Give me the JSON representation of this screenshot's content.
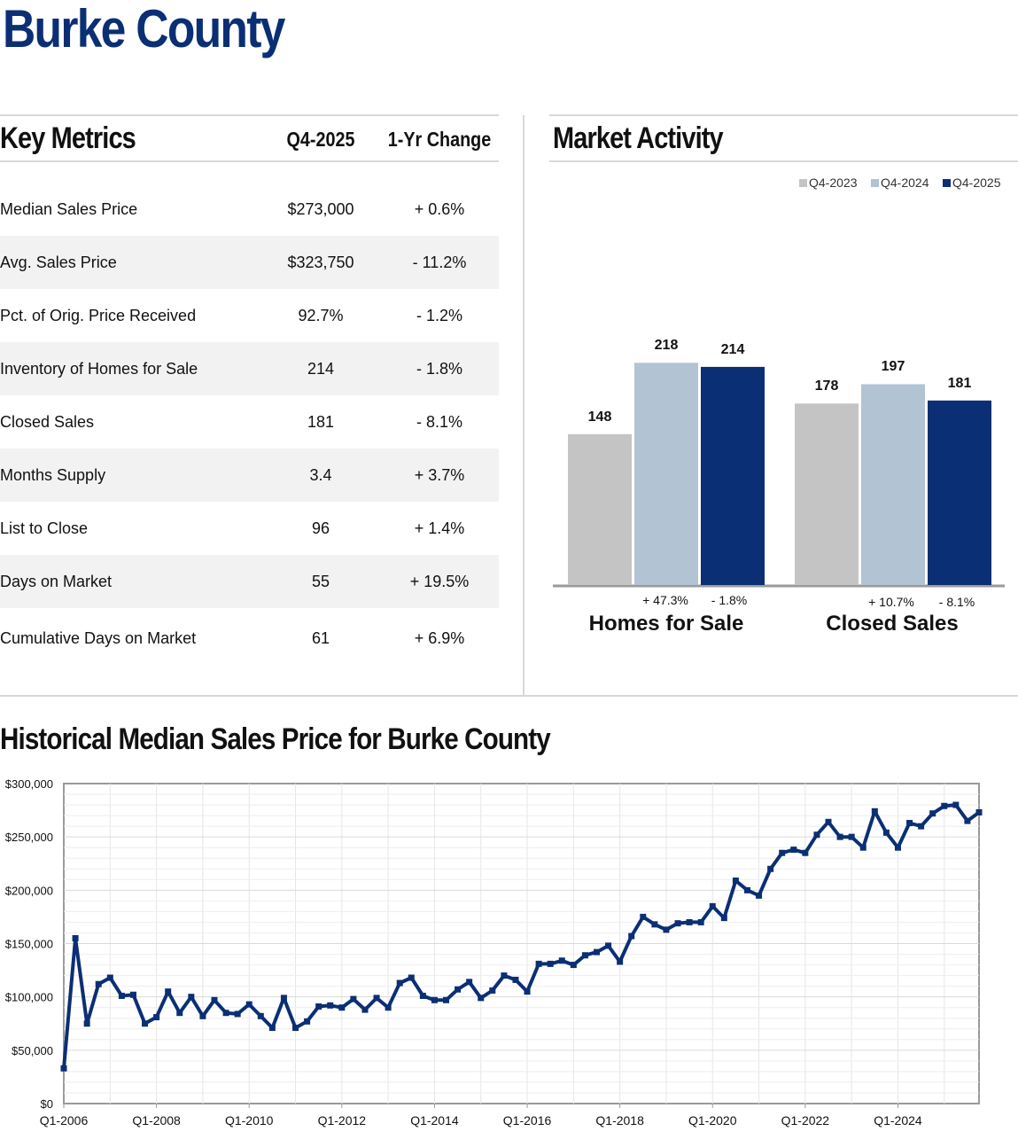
{
  "title": "Burke County",
  "key_metrics": {
    "heading": "Key Metrics",
    "col_period": "Q4-2025",
    "col_change": "1-Yr Change",
    "rows": [
      {
        "label": "Median Sales Price",
        "value": "$273,000",
        "change": "+ 0.6%"
      },
      {
        "label": "Avg. Sales Price",
        "value": "$323,750",
        "change": "- 11.2%"
      },
      {
        "label": "Pct. of Orig. Price Received",
        "value": "92.7%",
        "change": "- 1.2%"
      },
      {
        "label": "Inventory of Homes for Sale",
        "value": "214",
        "change": "- 1.8%"
      },
      {
        "label": "Closed Sales",
        "value": "181",
        "change": "- 8.1%"
      },
      {
        "label": "Months Supply",
        "value": "3.4",
        "change": "+ 3.7%"
      },
      {
        "label": "List to Close",
        "value": "96",
        "change": "+ 1.4%"
      },
      {
        "label": "Days on Market",
        "value": "55",
        "change": "+ 19.5%"
      },
      {
        "label": "Cumulative Days on Market",
        "value": "61",
        "change": "+ 6.9%"
      }
    ]
  },
  "market_activity": {
    "heading": "Market Activity",
    "legend": [
      {
        "label": "Q4-2023",
        "color": "#c4c4c4"
      },
      {
        "label": "Q4-2024",
        "color": "#b2c3d4"
      },
      {
        "label": "Q4-2025",
        "color": "#0b2f74"
      }
    ]
  },
  "historical": {
    "heading": "Historical Median Sales Price for Burke County"
  },
  "chart_data": [
    {
      "type": "bar",
      "title": "Market Activity",
      "categories": [
        "Homes for Sale",
        "Closed Sales"
      ],
      "series": [
        {
          "name": "Q4-2023",
          "values": [
            148,
            178
          ]
        },
        {
          "name": "Q4-2024",
          "values": [
            218,
            197
          ]
        },
        {
          "name": "Q4-2025",
          "values": [
            214,
            181
          ]
        }
      ],
      "changes": [
        {
          "category": "Homes for Sale",
          "yoy_2024": "+ 47.3%",
          "yoy_2025": "- 1.8%"
        },
        {
          "category": "Closed Sales",
          "yoy_2024": "+ 10.7%",
          "yoy_2025": "- 8.1%"
        }
      ],
      "ylim": [
        0,
        250
      ]
    },
    {
      "type": "line",
      "title": "Historical Median Sales Price for Burke County",
      "xlabel": "",
      "ylabel": "",
      "ylim": [
        0,
        300000
      ],
      "y_ticks": [
        "$0",
        "$50,000",
        "$100,000",
        "$150,000",
        "$200,000",
        "$250,000",
        "$300,000"
      ],
      "x_ticks": [
        "Q1-2006",
        "Q1-2008",
        "Q1-2010",
        "Q1-2012",
        "Q1-2014",
        "Q1-2016",
        "Q1-2018",
        "Q1-2020",
        "Q1-2022",
        "Q1-2024"
      ],
      "grid": true,
      "start_quarter": "Q1-2006",
      "series": [
        {
          "name": "Median Sales Price",
          "color": "#0b2f74",
          "values": [
            33000,
            155000,
            75000,
            112000,
            118000,
            101000,
            102000,
            75000,
            81000,
            105000,
            85000,
            100000,
            82000,
            97000,
            85000,
            84000,
            93000,
            82000,
            71000,
            99000,
            71000,
            77000,
            91000,
            92000,
            90000,
            98000,
            88000,
            99000,
            90000,
            113000,
            118000,
            101000,
            97000,
            97000,
            107000,
            114000,
            99000,
            106000,
            120000,
            116000,
            105000,
            131000,
            131000,
            134000,
            130000,
            139000,
            142000,
            148000,
            133000,
            157000,
            175000,
            168000,
            163000,
            169000,
            170000,
            170000,
            185000,
            174000,
            209000,
            200000,
            195000,
            220000,
            235000,
            238000,
            235000,
            252000,
            264000,
            250000,
            250000,
            240000,
            274000,
            254000,
            240000,
            263000,
            260000,
            272000,
            279000,
            280000,
            265000,
            273000
          ]
        }
      ]
    }
  ]
}
